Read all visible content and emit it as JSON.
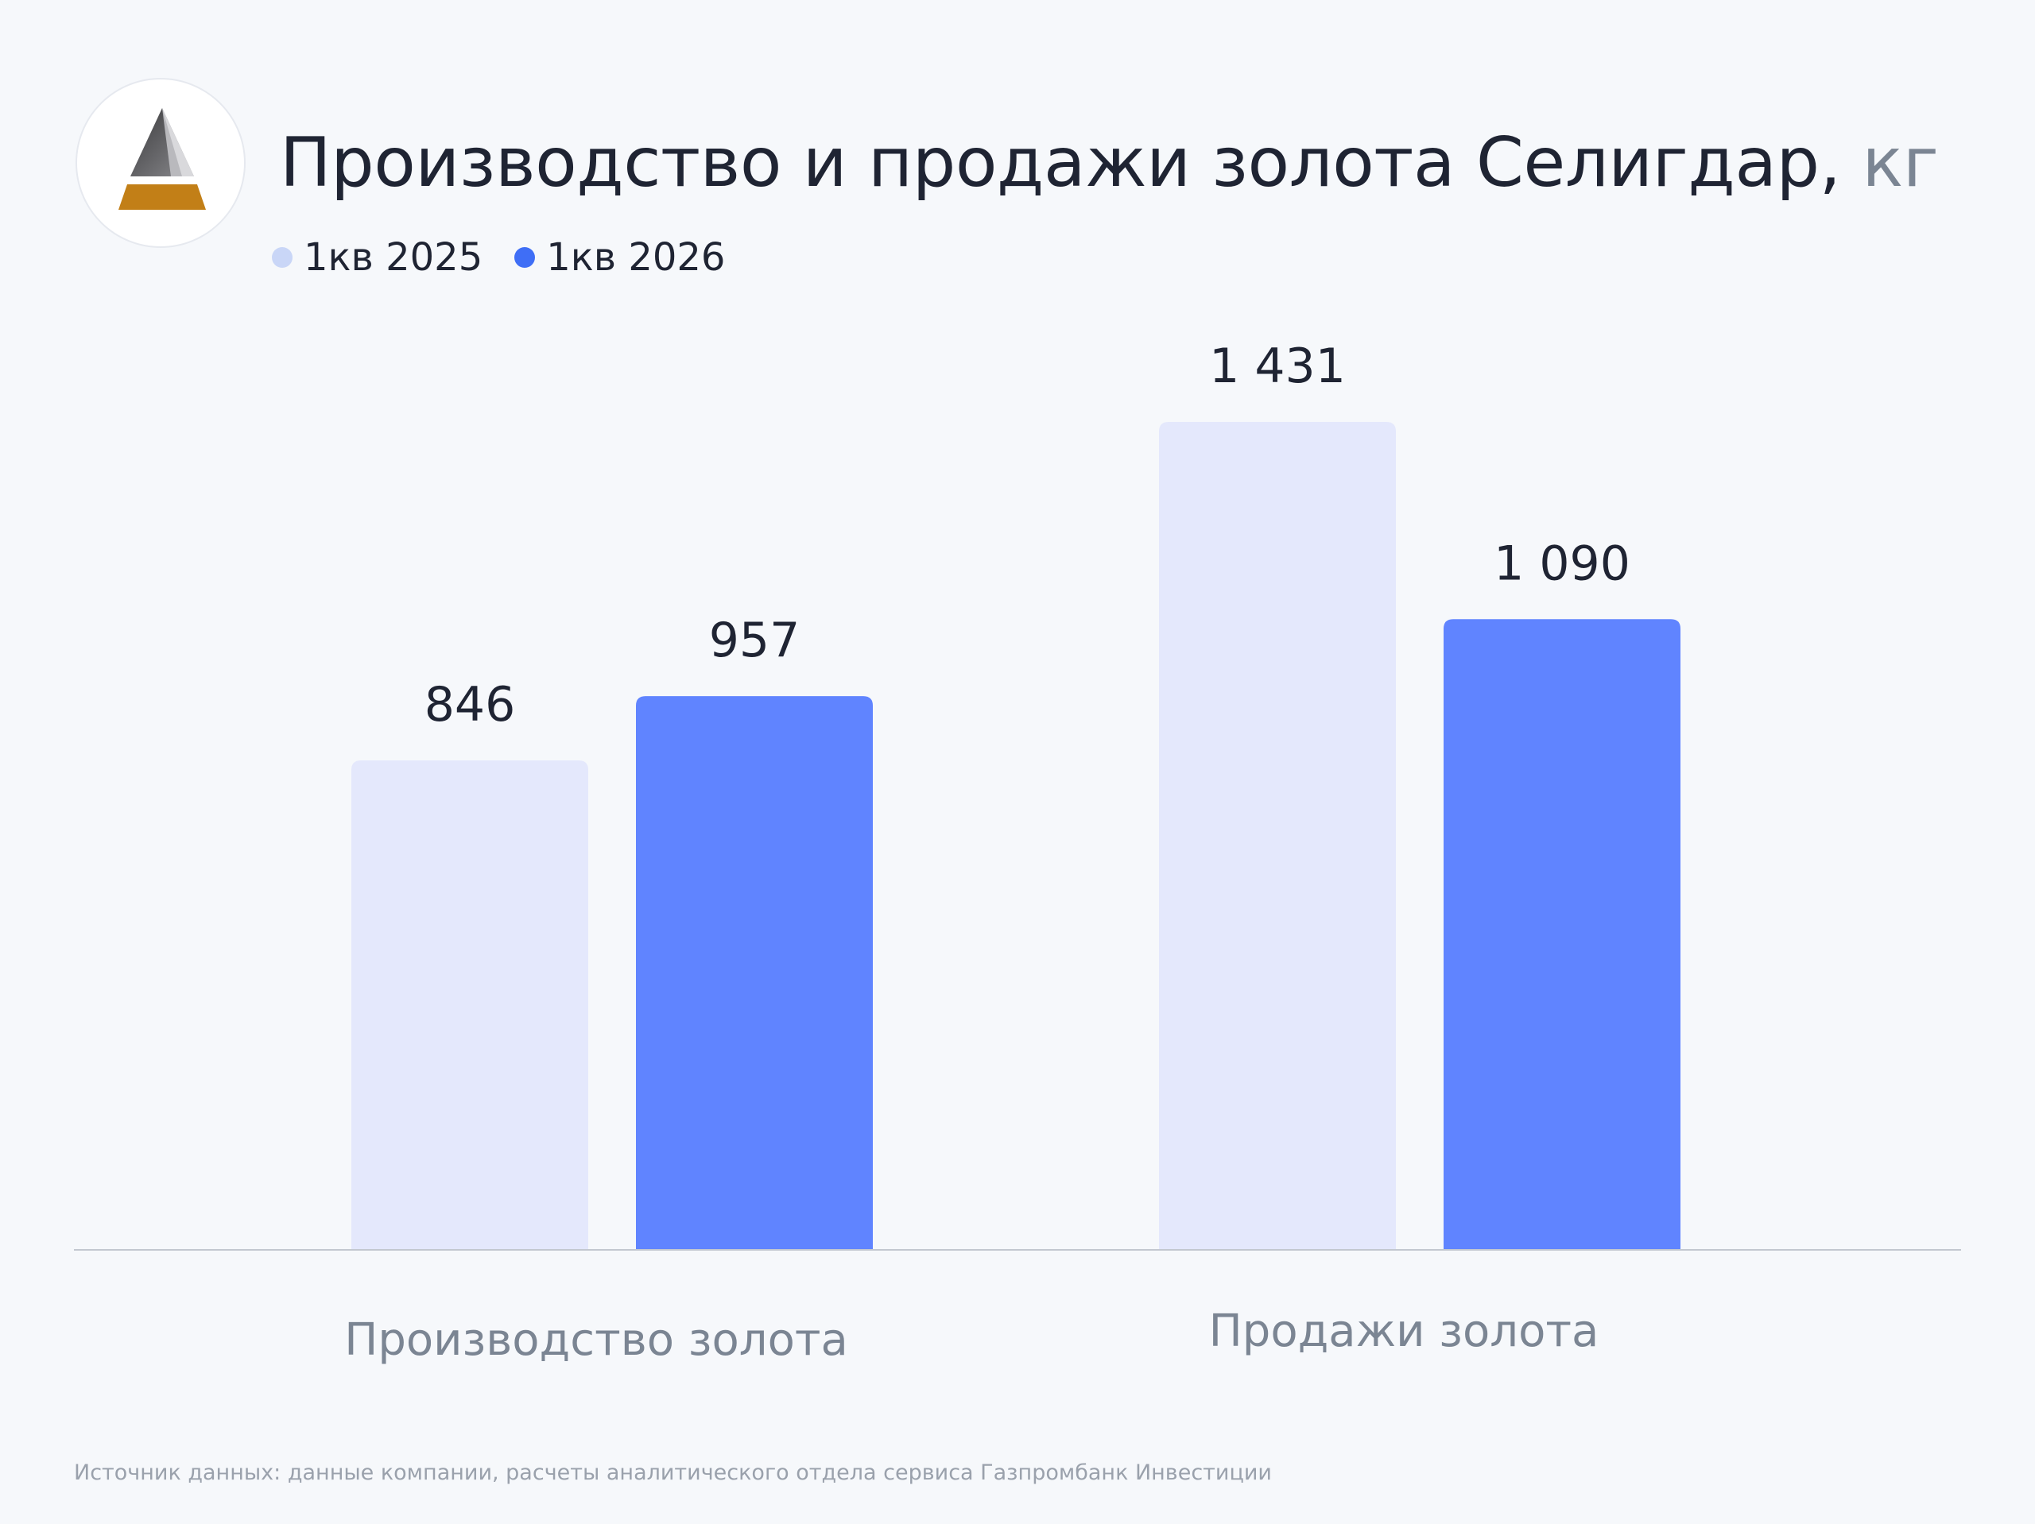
{
  "title": "Производство и продажи золота Селигдар,",
  "unit": "кг",
  "legend": [
    {
      "label": "1кв 2025",
      "color": "#c9d6f7"
    },
    {
      "label": "1кв 2026",
      "color": "#3f6ef6"
    }
  ],
  "source": "Источник данных: данные компании, расчеты аналитического отдела сервиса Газпромбанк Инвестиции",
  "logo_icon": "seligdar-logo-icon",
  "chart_data": {
    "type": "bar",
    "categories": [
      "Производство золота",
      "Продажи золота"
    ],
    "series": [
      {
        "name": "1кв 2025",
        "values": [
          846,
          1431
        ],
        "labels": [
          "846",
          "1 431"
        ],
        "color": "#e4e8fc"
      },
      {
        "name": "1кв 2026",
        "values": [
          957,
          1090
        ],
        "labels": [
          "957",
          "1 090"
        ],
        "color": "#6084ff"
      }
    ],
    "ylim": [
      0,
      1431
    ],
    "title": "Производство и продажи золота Селигдар, кг",
    "xlabel": "",
    "ylabel": "",
    "grid": false,
    "legend_position": "top-left"
  }
}
